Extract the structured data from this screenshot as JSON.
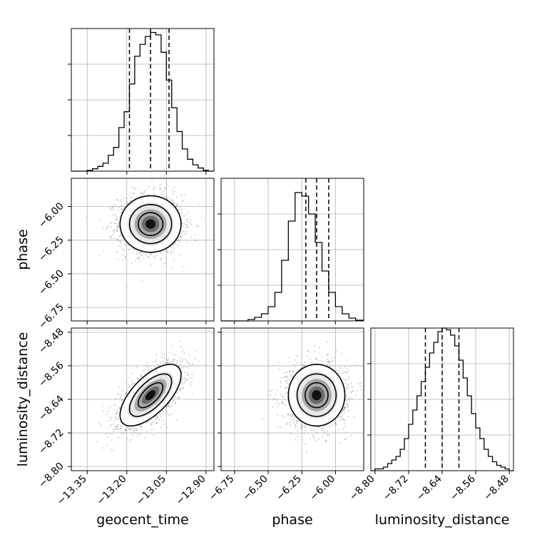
{
  "chart_data": {
    "type": "corner",
    "parameters": [
      {
        "name": "geocent_time",
        "range": [
          -13.41,
          -12.87
        ],
        "ticks": [
          -13.35,
          -13.2,
          -13.05,
          -12.9
        ],
        "tick_labels": [
          "−13.35",
          "−13.20",
          "−13.05",
          "−12.90"
        ],
        "quantiles": [
          -13.19,
          -13.11,
          -13.04
        ],
        "histogram": {
          "edges": [
            -13.41,
            -13.39,
            -13.37,
            -13.35,
            -13.33,
            -13.31,
            -13.29,
            -13.27,
            -13.25,
            -13.23,
            -13.21,
            -13.19,
            -13.17,
            -13.15,
            -13.13,
            -13.11,
            -13.09,
            -13.07,
            -13.05,
            -13.03,
            -13.01,
            -12.99,
            -12.97,
            -12.95,
            -12.93,
            -12.91,
            -12.89,
            -12.87
          ],
          "counts": [
            0,
            0,
            0,
            1,
            3,
            6,
            10,
            20,
            30,
            55,
            75,
            110,
            145,
            160,
            170,
            175,
            172,
            150,
            115,
            80,
            50,
            28,
            15,
            8,
            4,
            1,
            0
          ],
          "ylim": [
            0,
            180
          ]
        }
      },
      {
        "name": "phase",
        "range": [
          -6.85,
          -5.79
        ],
        "ticks": [
          -6.75,
          -6.5,
          -6.25,
          -6.0
        ],
        "tick_labels": [
          "−6.75",
          "−6.50",
          "−6.25",
          "−6.00"
        ],
        "quantiles": [
          -6.22,
          -6.14,
          -6.05
        ],
        "histogram": {
          "edges": [
            -6.85,
            -6.8,
            -6.75,
            -6.7,
            -6.65,
            -6.6,
            -6.55,
            -6.5,
            -6.45,
            -6.4,
            -6.35,
            -6.3,
            -6.25,
            -6.2,
            -6.15,
            -6.1,
            -6.05,
            -6.0,
            -5.95,
            -5.9,
            -5.85,
            -5.79
          ],
          "counts": [
            0,
            0,
            0,
            0,
            2,
            5,
            10,
            20,
            40,
            85,
            140,
            180,
            175,
            150,
            110,
            70,
            40,
            20,
            10,
            4,
            1
          ],
          "ylim": [
            0,
            200
          ]
        }
      },
      {
        "name": "luminosity_distance",
        "range": [
          -8.81,
          -8.47
        ],
        "ticks": [
          -8.8,
          -8.72,
          -8.64,
          -8.56,
          -8.48
        ],
        "tick_labels": [
          "−8.80",
          "−8.72",
          "−8.64",
          "−8.56",
          "−8.48"
        ],
        "quantiles": [
          -8.68,
          -8.64,
          -8.6
        ],
        "histogram": {
          "edges": [
            -8.81,
            -8.8,
            -8.79,
            -8.78,
            -8.77,
            -8.76,
            -8.75,
            -8.74,
            -8.73,
            -8.72,
            -8.71,
            -8.7,
            -8.69,
            -8.68,
            -8.67,
            -8.66,
            -8.65,
            -8.64,
            -8.63,
            -8.62,
            -8.61,
            -8.6,
            -8.59,
            -8.58,
            -8.57,
            -8.56,
            -8.55,
            -8.54,
            -8.53,
            -8.52,
            -8.51,
            -8.5,
            -8.49,
            -8.48,
            -8.47
          ],
          "counts": [
            0,
            1,
            1,
            2,
            4,
            6,
            8,
            12,
            18,
            26,
            34,
            42,
            50,
            58,
            66,
            72,
            78,
            80,
            79,
            76,
            70,
            62,
            52,
            42,
            32,
            24,
            18,
            12,
            8,
            5,
            3,
            2,
            1,
            0
          ],
          "ylim": [
            0,
            80
          ]
        }
      }
    ],
    "pairs": [
      {
        "row": 1,
        "col": 0,
        "center": [
          -13.11,
          -6.13
        ],
        "sigma": [
          0.055,
          0.1
        ],
        "rho": 0.0
      },
      {
        "row": 2,
        "col": 0,
        "center": [
          -13.11,
          -8.63
        ],
        "sigma": [
          0.055,
          0.035
        ],
        "rho": 0.65
      },
      {
        "row": 2,
        "col": 1,
        "center": [
          -6.14,
          -8.63
        ],
        "sigma": [
          0.1,
          0.035
        ],
        "rho": 0.0
      }
    ],
    "grid": true,
    "quantile_line_style": "dashed"
  }
}
